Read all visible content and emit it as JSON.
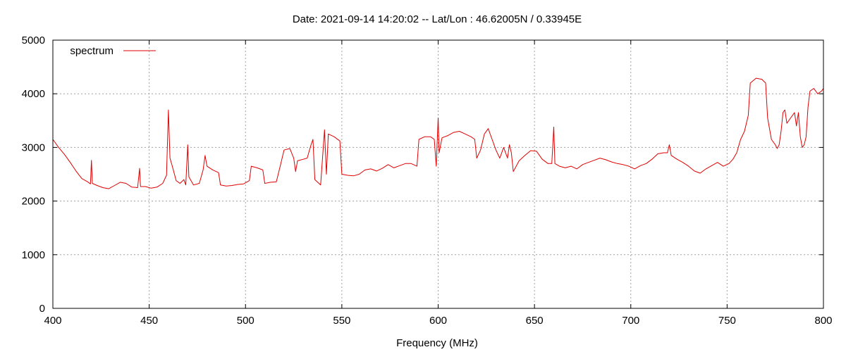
{
  "chart_data": {
    "type": "line",
    "title": "Date: 2021-09-14 14:20:02  --  Lat/Lon : 46.62005N / 0.33945E",
    "xlabel": "Frequency (MHz)",
    "ylabel": "",
    "xlim": [
      400,
      800
    ],
    "ylim": [
      0,
      5000
    ],
    "x_ticks": [
      400,
      450,
      500,
      550,
      600,
      650,
      700,
      750,
      800
    ],
    "y_ticks": [
      0,
      1000,
      2000,
      3000,
      4000,
      5000
    ],
    "x_tick_labels": [
      "400",
      "450",
      "500",
      "550",
      "600",
      "650",
      "700",
      "750",
      "800"
    ],
    "y_tick_labels": [
      "0",
      "1000",
      "2000",
      "3000",
      "4000",
      "5000"
    ],
    "grid": true,
    "legend": {
      "position": "top-left"
    },
    "series": [
      {
        "name": "spectrum",
        "color": "#e00000",
        "points": [
          [
            400,
            3150
          ],
          [
            403,
            3000
          ],
          [
            406,
            2870
          ],
          [
            409,
            2720
          ],
          [
            412,
            2560
          ],
          [
            415,
            2420
          ],
          [
            418,
            2360
          ],
          [
            419.5,
            2320
          ],
          [
            420,
            2760
          ],
          [
            420.5,
            2330
          ],
          [
            423,
            2290
          ],
          [
            426,
            2250
          ],
          [
            429,
            2230
          ],
          [
            432,
            2290
          ],
          [
            435,
            2350
          ],
          [
            438,
            2330
          ],
          [
            441,
            2260
          ],
          [
            444,
            2250
          ],
          [
            445,
            2610
          ],
          [
            445.5,
            2270
          ],
          [
            448,
            2270
          ],
          [
            451,
            2240
          ],
          [
            454,
            2260
          ],
          [
            457,
            2330
          ],
          [
            459,
            2480
          ],
          [
            460,
            3700
          ],
          [
            460.8,
            2800
          ],
          [
            462,
            2650
          ],
          [
            464,
            2380
          ],
          [
            466,
            2330
          ],
          [
            468,
            2400
          ],
          [
            469,
            2300
          ],
          [
            470,
            3050
          ],
          [
            470.6,
            2450
          ],
          [
            473,
            2300
          ],
          [
            476,
            2330
          ],
          [
            478,
            2580
          ],
          [
            479,
            2850
          ],
          [
            480,
            2650
          ],
          [
            483,
            2580
          ],
          [
            486,
            2530
          ],
          [
            487,
            2300
          ],
          [
            490,
            2280
          ],
          [
            493,
            2290
          ],
          [
            496,
            2310
          ],
          [
            499,
            2320
          ],
          [
            502,
            2380
          ],
          [
            503,
            2650
          ],
          [
            506,
            2620
          ],
          [
            509,
            2580
          ],
          [
            510,
            2330
          ],
          [
            513,
            2350
          ],
          [
            516,
            2360
          ],
          [
            518,
            2650
          ],
          [
            520,
            2950
          ],
          [
            523,
            2980
          ],
          [
            525,
            2800
          ],
          [
            526,
            2550
          ],
          [
            527,
            2750
          ],
          [
            530,
            2780
          ],
          [
            532,
            2800
          ],
          [
            534,
            3050
          ],
          [
            535,
            3150
          ],
          [
            536,
            2400
          ],
          [
            539,
            2300
          ],
          [
            541,
            3330
          ],
          [
            542,
            2500
          ],
          [
            543,
            3250
          ],
          [
            546,
            3200
          ],
          [
            549,
            3120
          ],
          [
            550,
            2500
          ],
          [
            553,
            2480
          ],
          [
            556,
            2470
          ],
          [
            559,
            2500
          ],
          [
            562,
            2580
          ],
          [
            565,
            2600
          ],
          [
            568,
            2560
          ],
          [
            571,
            2610
          ],
          [
            574,
            2680
          ],
          [
            577,
            2620
          ],
          [
            580,
            2660
          ],
          [
            583,
            2700
          ],
          [
            586,
            2700
          ],
          [
            589,
            2650
          ],
          [
            590,
            3150
          ],
          [
            593,
            3200
          ],
          [
            596,
            3200
          ],
          [
            598,
            3150
          ],
          [
            599,
            2650
          ],
          [
            600,
            3550
          ],
          [
            600.5,
            2900
          ],
          [
            602,
            3180
          ],
          [
            605,
            3220
          ],
          [
            608,
            3280
          ],
          [
            611,
            3300
          ],
          [
            614,
            3250
          ],
          [
            617,
            3200
          ],
          [
            619,
            3150
          ],
          [
            620,
            2800
          ],
          [
            622,
            2950
          ],
          [
            624,
            3250
          ],
          [
            626,
            3350
          ],
          [
            628,
            3150
          ],
          [
            630,
            2950
          ],
          [
            632,
            2800
          ],
          [
            634,
            3000
          ],
          [
            636,
            2800
          ],
          [
            637,
            3050
          ],
          [
            638,
            2900
          ],
          [
            639,
            2550
          ],
          [
            642,
            2750
          ],
          [
            645,
            2850
          ],
          [
            648,
            2940
          ],
          [
            651,
            2930
          ],
          [
            654,
            2780
          ],
          [
            657,
            2700
          ],
          [
            659,
            2700
          ],
          [
            660,
            3380
          ],
          [
            660.6,
            2700
          ],
          [
            663,
            2650
          ],
          [
            666,
            2620
          ],
          [
            669,
            2650
          ],
          [
            672,
            2600
          ],
          [
            675,
            2680
          ],
          [
            678,
            2720
          ],
          [
            681,
            2760
          ],
          [
            684,
            2800
          ],
          [
            687,
            2770
          ],
          [
            690,
            2730
          ],
          [
            693,
            2700
          ],
          [
            696,
            2680
          ],
          [
            699,
            2650
          ],
          [
            702,
            2600
          ],
          [
            705,
            2660
          ],
          [
            708,
            2700
          ],
          [
            711,
            2780
          ],
          [
            714,
            2880
          ],
          [
            717,
            2900
          ],
          [
            719,
            2900
          ],
          [
            720,
            3050
          ],
          [
            721,
            2850
          ],
          [
            724,
            2780
          ],
          [
            727,
            2720
          ],
          [
            730,
            2650
          ],
          [
            733,
            2560
          ],
          [
            736,
            2520
          ],
          [
            739,
            2600
          ],
          [
            742,
            2660
          ],
          [
            745,
            2720
          ],
          [
            748,
            2650
          ],
          [
            751,
            2700
          ],
          [
            753,
            2780
          ],
          [
            755,
            2900
          ],
          [
            757,
            3150
          ],
          [
            759,
            3300
          ],
          [
            761,
            3600
          ],
          [
            762,
            4200
          ],
          [
            765,
            4290
          ],
          [
            768,
            4270
          ],
          [
            770,
            4200
          ],
          [
            771,
            3550
          ],
          [
            773,
            3150
          ],
          [
            775,
            3050
          ],
          [
            776,
            2980
          ],
          [
            777,
            3050
          ],
          [
            778,
            3300
          ],
          [
            779,
            3650
          ],
          [
            780,
            3700
          ],
          [
            781,
            3450
          ],
          [
            783,
            3550
          ],
          [
            785,
            3650
          ],
          [
            786,
            3400
          ],
          [
            787,
            3650
          ],
          [
            788,
            3200
          ],
          [
            789,
            3000
          ],
          [
            790,
            3050
          ],
          [
            791,
            3200
          ],
          [
            792,
            3750
          ],
          [
            793,
            4050
          ],
          [
            795,
            4100
          ],
          [
            797,
            4000
          ],
          [
            799,
            4050
          ],
          [
            800,
            4100
          ]
        ]
      }
    ]
  }
}
